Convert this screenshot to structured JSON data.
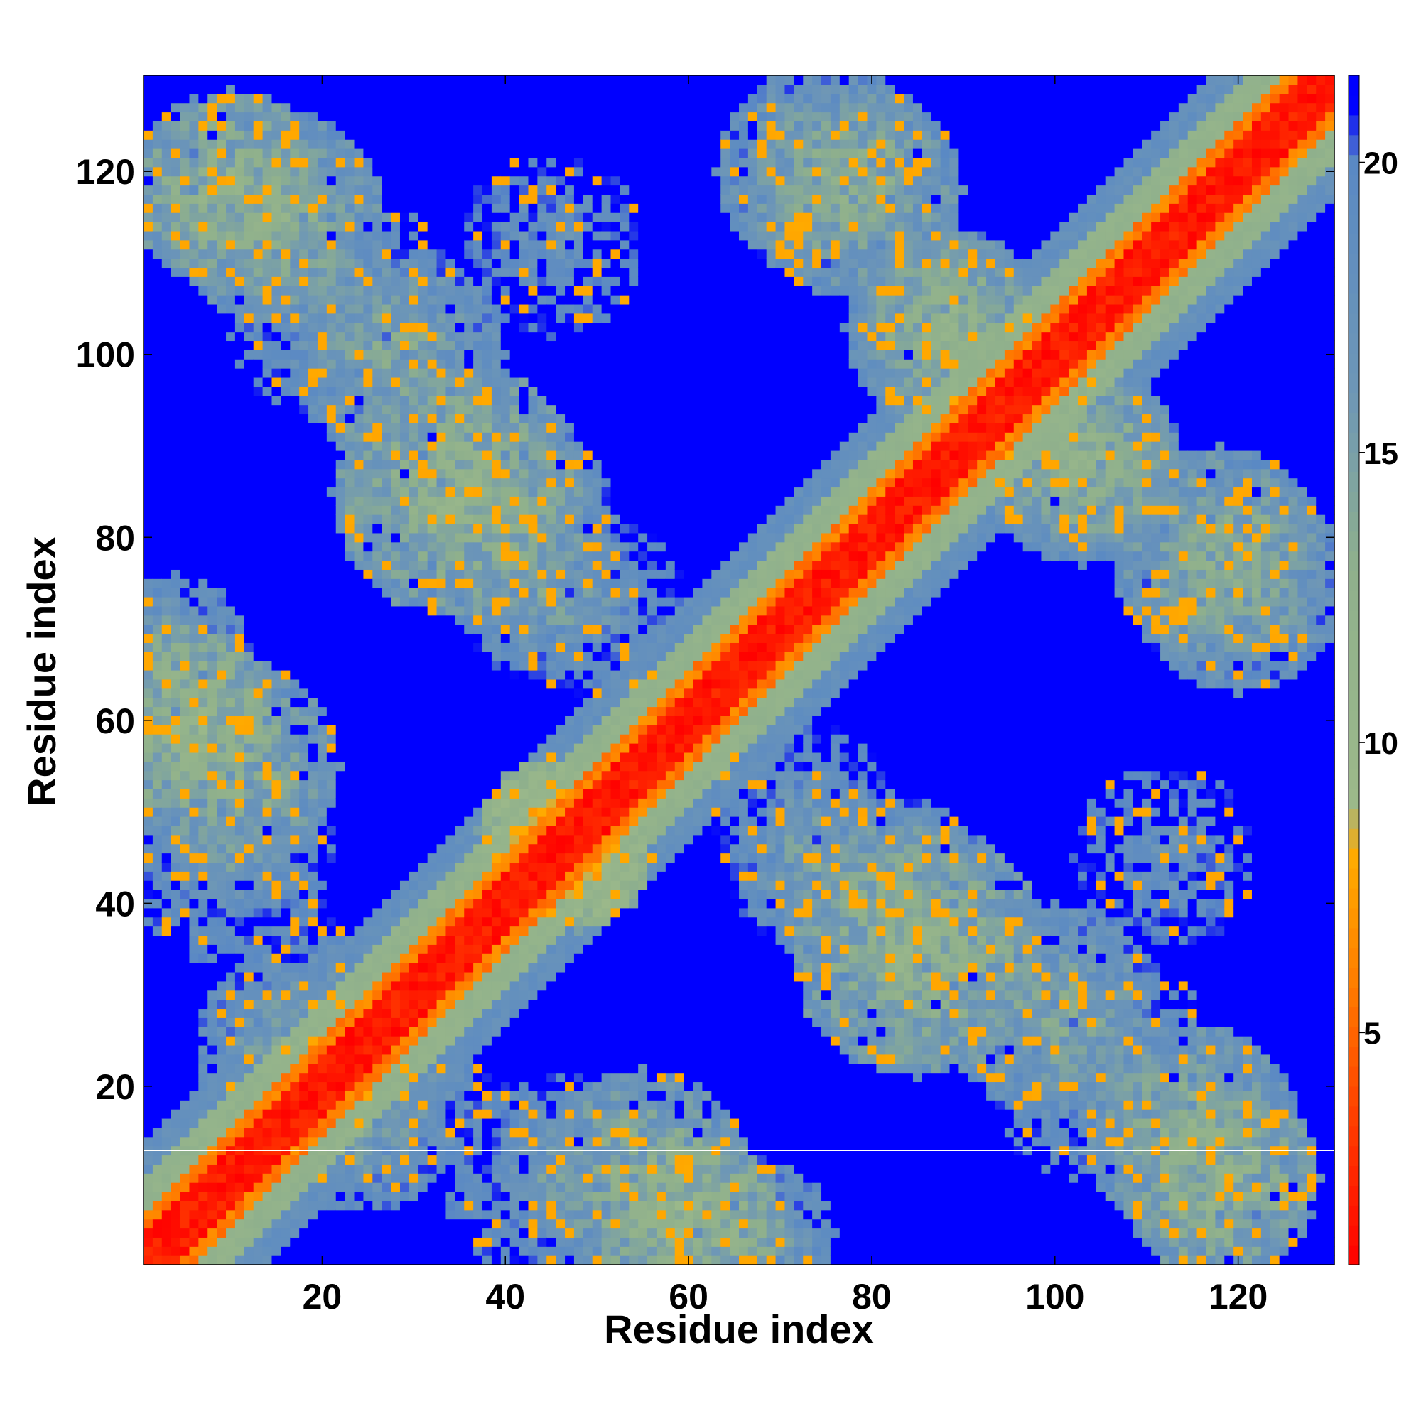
{
  "chart_data": {
    "type": "heatmap",
    "title": "",
    "xlabel": "Residue index",
    "ylabel": "Residue index",
    "x_range": [
      1,
      130
    ],
    "y_range": [
      1,
      130
    ],
    "xticks": [
      20,
      40,
      60,
      80,
      100,
      120
    ],
    "yticks": [
      20,
      40,
      60,
      80,
      100,
      120
    ],
    "colorbar": {
      "ticks": [
        5,
        10,
        15,
        20
      ],
      "range": [
        1,
        21.5
      ],
      "stops": [
        {
          "value": 1,
          "color": "#ff0000"
        },
        {
          "value": 4,
          "color": "#ff4a00"
        },
        {
          "value": 6,
          "color": "#ff8000"
        },
        {
          "value": 8,
          "color": "#ffaa00"
        },
        {
          "value": 9,
          "color": "#9cb98a"
        },
        {
          "value": 13,
          "color": "#8fb08c"
        },
        {
          "value": 16,
          "color": "#6e97b6"
        },
        {
          "value": 20,
          "color": "#5a89c4"
        },
        {
          "value": 21,
          "color": "#0000ff"
        }
      ]
    },
    "description_of_values": "symmetric residue-residue distance map; values capped at 21",
    "diagonal_band": [
      {
        "max_offset": 3,
        "value": 2
      },
      {
        "max_offset": 5,
        "value": 6
      },
      {
        "max_offset": 9,
        "value": 12
      },
      {
        "max_offset": 13,
        "value": 18
      }
    ],
    "contact_regions": [
      {
        "center": [
          10,
          118
        ],
        "radius": 11,
        "value": 12
      },
      {
        "center": [
          22,
          105
        ],
        "radius": 13,
        "value": 16
      },
      {
        "center": [
          35,
          85
        ],
        "radius": 14,
        "value": 12
      },
      {
        "center": [
          45,
          74
        ],
        "radius": 10,
        "value": 15
      },
      {
        "center": [
          5,
          60
        ],
        "radius": 10,
        "value": 11
      },
      {
        "center": [
          10,
          45
        ],
        "radius": 12,
        "value": 16
      },
      {
        "center": [
          15,
          25
        ],
        "radius": 9,
        "value": 15
      },
      {
        "center": [
          30,
          18
        ],
        "radius": 9,
        "value": 16
      },
      {
        "center": [
          55,
          10
        ],
        "radius": 12,
        "value": 13
      },
      {
        "center": [
          68,
          4
        ],
        "radius": 8,
        "value": 15
      },
      {
        "center": [
          78,
          118
        ],
        "radius": 12,
        "value": 13
      },
      {
        "center": [
          88,
          103
        ],
        "radius": 10,
        "value": 12
      },
      {
        "center": [
          103,
          88
        ],
        "radius": 11,
        "value": 13
      },
      {
        "center": [
          120,
          75
        ],
        "radius": 12,
        "value": 14
      },
      {
        "center": [
          82,
          40
        ],
        "radius": 12,
        "value": 14
      },
      {
        "center": [
          100,
          28
        ],
        "radius": 12,
        "value": 14
      },
      {
        "center": [
          115,
          15
        ],
        "radius": 12,
        "value": 13
      },
      {
        "center": [
          112,
          45
        ],
        "radius": 10,
        "value": 17
      },
      {
        "center": [
          72,
          50
        ],
        "radius": 10,
        "value": 17
      },
      {
        "center": [
          48,
          45
        ],
        "radius": 8,
        "value": 8
      }
    ]
  }
}
